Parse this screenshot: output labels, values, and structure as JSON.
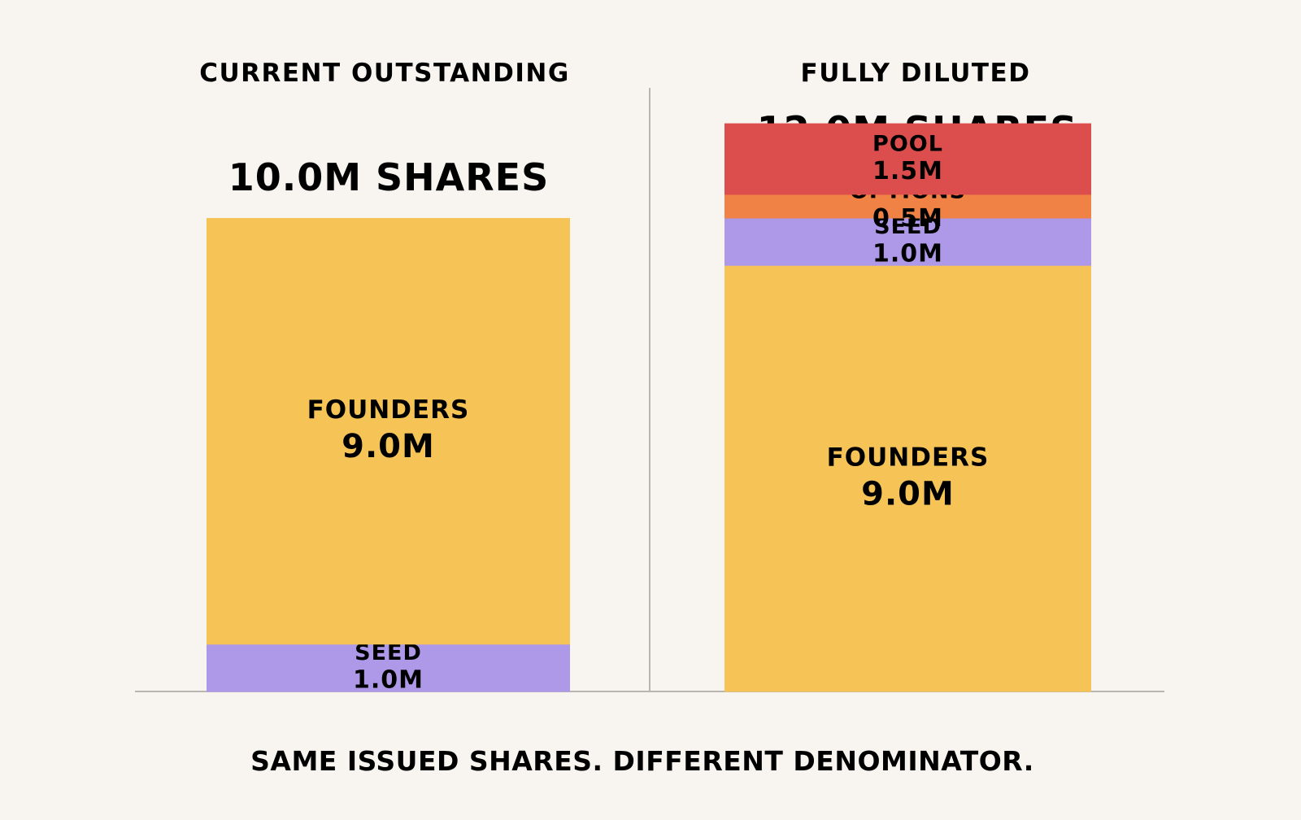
{
  "chart_data": {
    "type": "bar",
    "stacked": true,
    "unit": "M",
    "caption": "SAME ISSUED SHARES. DIFFERENT DENOMINATOR.",
    "colors": {
      "FOUNDERS": "#f5c356",
      "SEED": "#ae98e8",
      "OPTIONS": "#ef8244",
      "POOL": "#dc4e4e"
    },
    "panels": [
      {
        "title": "CURRENT OUTSTANDING",
        "total_label": "10.0M SHARES",
        "total": 10.0,
        "segments": [
          {
            "name": "SEED",
            "value": 1.0,
            "label": "1.0M"
          },
          {
            "name": "FOUNDERS",
            "value": 9.0,
            "label": "9.0M"
          }
        ]
      },
      {
        "title": "FULLY DILUTED",
        "total_label": "12.0M SHARES",
        "total": 12.0,
        "segments": [
          {
            "name": "FOUNDERS",
            "value": 9.0,
            "label": "9.0M"
          },
          {
            "name": "SEED",
            "value": 1.0,
            "label": "1.0M"
          },
          {
            "name": "OPTIONS",
            "value": 0.5,
            "label": "0.5M"
          },
          {
            "name": "POOL",
            "value": 1.5,
            "label": "1.5M"
          }
        ]
      }
    ]
  }
}
